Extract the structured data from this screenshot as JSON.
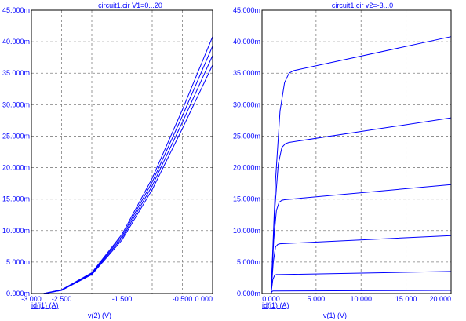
{
  "chart_data": [
    {
      "type": "line",
      "title": "circuit1.cir V1=0...20",
      "xlabel": "v(2) (V)",
      "ylabel": "id(j1) (A)",
      "xlim": [
        -3.0,
        0.0
      ],
      "ylim": [
        0,
        0.045
      ],
      "grid": true,
      "x_ticks": [
        {
          "value": -3.0,
          "label": "-3.000"
        },
        {
          "value": -2.5,
          "label": "-2.500"
        },
        {
          "value": -1.5,
          "label": "-1.500"
        },
        {
          "value": -0.5,
          "label": "-0.500"
        },
        {
          "value": 0.0,
          "label": "0.000"
        }
      ],
      "x_grid": [
        -3.0,
        -2.5,
        -2.0,
        -1.5,
        -1.0,
        -0.5,
        0.0
      ],
      "y_ticks": [
        {
          "value": 0,
          "label": "0.000m"
        },
        {
          "value": 0.005,
          "label": "5.000m"
        },
        {
          "value": 0.01,
          "label": "10.000m"
        },
        {
          "value": 0.015,
          "label": "15.000m"
        },
        {
          "value": 0.02,
          "label": "20.000m"
        },
        {
          "value": 0.025,
          "label": "25.000m"
        },
        {
          "value": 0.03,
          "label": "30.000m"
        },
        {
          "value": 0.035,
          "label": "35.000m"
        },
        {
          "value": 0.04,
          "label": "40.000m"
        },
        {
          "value": 0.045,
          "label": "45.000m"
        }
      ],
      "series": [
        {
          "x": [
            -2.8,
            -2.5,
            -2.0,
            -1.5,
            -1.0,
            -0.5,
            0.0
          ],
          "values": [
            0,
            0.0005,
            0.003,
            0.0085,
            0.0165,
            0.0262,
            0.0363
          ]
        },
        {
          "x": [
            -2.8,
            -2.5,
            -2.0,
            -1.5,
            -1.0,
            -0.5,
            0.0
          ],
          "values": [
            0,
            0.0005,
            0.0031,
            0.0088,
            0.0171,
            0.0272,
            0.0378
          ]
        },
        {
          "x": [
            -2.8,
            -2.5,
            -2.0,
            -1.5,
            -1.0,
            -0.5,
            0.0
          ],
          "values": [
            0,
            0.0006,
            0.0032,
            0.0091,
            0.0177,
            0.0282,
            0.0393
          ]
        },
        {
          "x": [
            -2.8,
            -2.5,
            -2.0,
            -1.5,
            -1.0,
            -0.5,
            0.0
          ],
          "values": [
            0,
            0.0006,
            0.0033,
            0.0094,
            0.0183,
            0.0292,
            0.0408
          ]
        }
      ]
    },
    {
      "type": "line",
      "title": "circuit1.cir v2=-3...0",
      "xlabel": "v(1) (V)",
      "ylabel": "id(j1) (A)",
      "xlim": [
        -1.0,
        20.0
      ],
      "ylim": [
        0,
        0.045
      ],
      "grid": true,
      "x_ticks": [
        {
          "value": 0.0,
          "label": "0.000"
        },
        {
          "value": 5.0,
          "label": "5.000"
        },
        {
          "value": 10.0,
          "label": "10.000"
        },
        {
          "value": 15.0,
          "label": "15.000"
        },
        {
          "value": 20.0,
          "label": "20.000"
        }
      ],
      "x_grid": [
        0,
        5,
        10,
        15,
        20
      ],
      "y_ticks": [
        {
          "value": 0,
          "label": "0.000m"
        },
        {
          "value": 0.005,
          "label": "5.000m"
        },
        {
          "value": 0.01,
          "label": "10.000m"
        },
        {
          "value": 0.015,
          "label": "15.000m"
        },
        {
          "value": 0.02,
          "label": "20.000m"
        },
        {
          "value": 0.025,
          "label": "25.000m"
        },
        {
          "value": 0.03,
          "label": "30.000m"
        },
        {
          "value": 0.035,
          "label": "35.000m"
        },
        {
          "value": 0.04,
          "label": "40.000m"
        },
        {
          "value": 0.045,
          "label": "45.000m"
        }
      ],
      "series": [
        {
          "x": [
            0,
            0.5,
            1.0,
            1.5,
            2.0,
            2.5,
            20.0
          ],
          "values": [
            0,
            0.018,
            0.029,
            0.0335,
            0.035,
            0.0354,
            0.0408
          ]
        },
        {
          "x": [
            0,
            0.4,
            0.8,
            1.2,
            1.6,
            2.0,
            20.0
          ],
          "values": [
            0,
            0.013,
            0.0205,
            0.0232,
            0.0238,
            0.024,
            0.0279
          ]
        },
        {
          "x": [
            0,
            0.3,
            0.6,
            0.9,
            1.2,
            1.5,
            20.0
          ],
          "values": [
            0,
            0.0085,
            0.0132,
            0.0145,
            0.0148,
            0.0149,
            0.0173
          ]
        },
        {
          "x": [
            0,
            0.25,
            0.5,
            0.75,
            1.0,
            20.0
          ],
          "values": [
            0,
            0.005,
            0.0074,
            0.0078,
            0.0079,
            0.0092
          ]
        },
        {
          "x": [
            0,
            0.2,
            0.4,
            0.6,
            0.8,
            20.0
          ],
          "values": [
            0,
            0.0022,
            0.0029,
            0.003,
            0.003,
            0.0035
          ]
        },
        {
          "x": [
            0,
            0.1,
            0.2,
            0.4,
            20.0
          ],
          "values": [
            0,
            0.0003,
            0.0004,
            0.0004,
            0.0005
          ]
        },
        {
          "x": [
            0,
            20.0
          ],
          "values": [
            0,
            0
          ]
        }
      ]
    }
  ]
}
